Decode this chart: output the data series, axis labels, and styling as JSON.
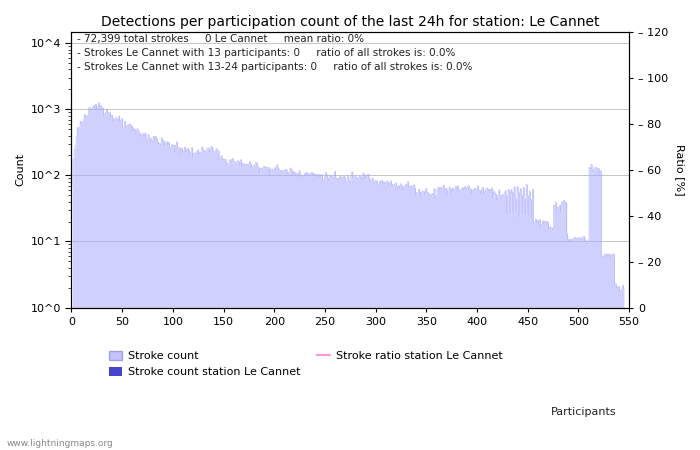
{
  "title": "Detections per participation count of the last 24h for station: Le Cannet",
  "xlabel": "Participants",
  "ylabel_left": "Count",
  "ylabel_right": "Ratio [%]",
  "annotation_lines": [
    "72,399 total strokes     0 Le Cannet     mean ratio: 0%",
    "Strokes Le Cannet with 13 participants: 0     ratio of all strokes is: 0.0%",
    "Strokes Le Cannet with 13-24 participants: 0     ratio of all strokes is: 0.0%"
  ],
  "fill_color": "#aaaaff",
  "station_bar_color": "#4444cc",
  "ratio_line_color": "#ff99dd",
  "xlim": [
    0,
    550
  ],
  "ylim_right": [
    0,
    120
  ],
  "right_yticks": [
    0,
    20,
    40,
    60,
    80,
    100,
    120
  ],
  "x_ticks": [
    0,
    50,
    100,
    150,
    200,
    250,
    300,
    350,
    400,
    450,
    500,
    550
  ],
  "legend_entries": [
    "Stroke count",
    "Stroke count station Le Cannet",
    "Stroke ratio station Le Cannet"
  ],
  "watermark": "www.lightningmaps.org",
  "background_color": "#ffffff",
  "grid_color": "#bbbbbb",
  "title_fontsize": 10,
  "annot_fontsize": 7.5,
  "axis_fontsize": 8,
  "legend_fontsize": 8
}
